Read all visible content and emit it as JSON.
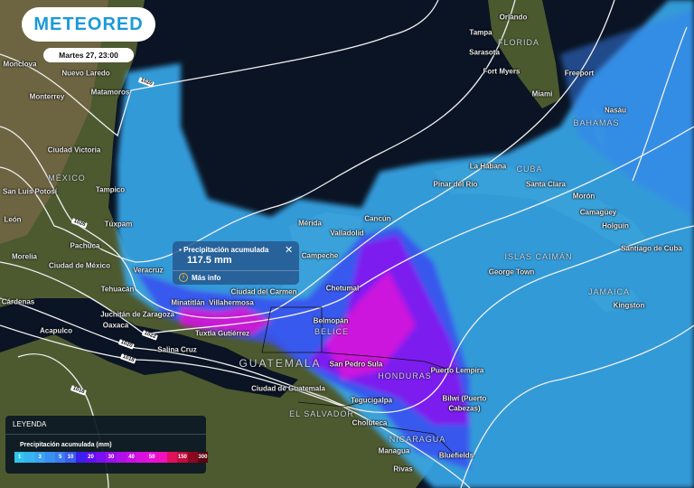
{
  "brand": {
    "logo": "METEORED"
  },
  "datetime": "Martes 27, 23:00",
  "popup": {
    "title": "Precipitación acumulada",
    "value": "117.5 mm",
    "more_info": "Más info",
    "close_icon": "close-icon",
    "info_icon": "info-icon",
    "layer_icon": "rain-gauge-icon"
  },
  "legend": {
    "title": "LEYENDA",
    "subtitle": "Precipitación acumulada (mm)",
    "bins": [
      {
        "label": "1",
        "color": "#2fc4ee"
      },
      {
        "label": "",
        "color": "#36b4f0"
      },
      {
        "label": "3",
        "color": "#3aa2f2"
      },
      {
        "label": "",
        "color": "#3a8ff0"
      },
      {
        "label": "5",
        "color": "#3a7cf0"
      },
      {
        "label": "10",
        "color": "#3c5cf0"
      },
      {
        "label": "",
        "color": "#3b20f0"
      },
      {
        "label": "20",
        "color": "#6010f0"
      },
      {
        "label": "",
        "color": "#7a10f0"
      },
      {
        "label": "30",
        "color": "#9a10ee"
      },
      {
        "label": "",
        "color": "#b010ea"
      },
      {
        "label": "40",
        "color": "#c810e6"
      },
      {
        "label": "",
        "color": "#d810e0"
      },
      {
        "label": "50",
        "color": "#e810d8"
      },
      {
        "label": "",
        "color": "#f010c0"
      },
      {
        "label": "",
        "color": "#e0105a"
      },
      {
        "label": "150",
        "color": "#c00c3a"
      },
      {
        "label": "",
        "color": "#8c0820"
      },
      {
        "label": "300",
        "color": "#5a0410"
      }
    ]
  },
  "cities": [
    "Monclova",
    "Nuevo Laredo",
    "Monterrey",
    "Matamoros",
    "Ciudad Victoria",
    "San Luis Potosí",
    "Tampico",
    "León",
    "Túxpam",
    "Pachuca",
    "Morelia",
    "Ciudad de México",
    "Veracruz",
    "Tehuacán",
    "Cárdenas",
    "Oaxaca",
    "Juchitán de Zaragoza",
    "Minatitlán",
    "Villahermosa",
    "Ciudad del Carmen",
    "Campeche",
    "Mérida",
    "Valladolid",
    "Cancún",
    "Chetumal",
    "Belmopán",
    "Tuxtla Gutiérrez",
    "Salina Cruz",
    "Acapulco",
    "San Pedro Sula",
    "Ciudad de Guatemala",
    "Puerto Lempira",
    "Tegucigalpa",
    "Bilwi (Puerto",
    "Cabezas)",
    "Choluteca",
    "Managua",
    "Bluefields",
    "Rivas",
    "Orlando",
    "Tampa",
    "Sarasota",
    "Fort Myers",
    "Miami",
    "Freeport",
    "Nasáu",
    "La Habana",
    "Pinar del Río",
    "Santa Clara",
    "Morón",
    "Camagüey",
    "Holguín",
    "Santiago de Cuba",
    "George Town",
    "Kingston"
  ],
  "countries": [
    "MÉXICO",
    "GUATEMALA",
    "BELICE",
    "HONDURAS",
    "EL SALVADOR",
    "NICARAGUA",
    "CUBA",
    "FLORIDA",
    "BAHAMAS",
    "ISLAS CAIMÁN",
    "JAMAICA"
  ],
  "isobars": [
    "1026",
    "1020",
    "1022",
    "1020",
    "1018",
    "1016"
  ],
  "colors": {
    "ocean": "#0a1424",
    "land": "#4a5a2c",
    "popup": "#26568c",
    "brand": "#1a9ad9"
  }
}
